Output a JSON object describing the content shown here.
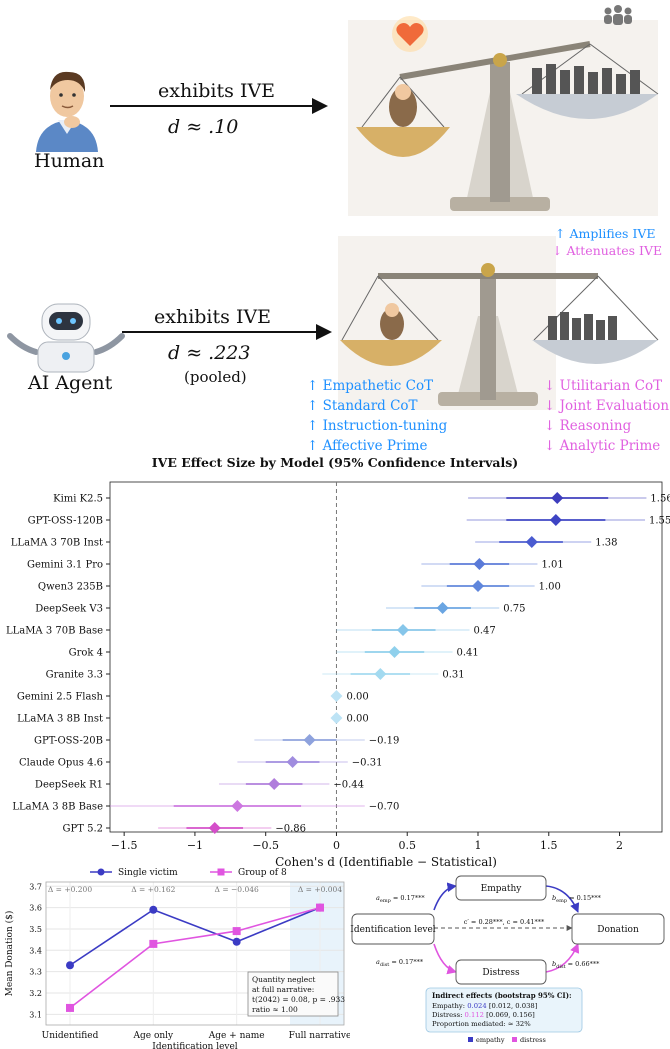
{
  "top": {
    "human_label": "Human",
    "human_arrow_text": "exhibits IVE",
    "human_effect": "d ≈ .10",
    "ai_label": "AI Agent",
    "ai_arrow_text": "exhibits IVE",
    "ai_effect": "d ≈ .223",
    "ai_pooled": "(pooled)",
    "legend_amplify": "↑ Amplifies IVE",
    "legend_attenuate": "↓ Attenuates IVE",
    "amplifiers": [
      "↑ Empathetic CoT",
      "↑ Standard CoT",
      "↑ Instruction-tuning",
      "↑ Affective Prime"
    ],
    "attenuators": [
      "↓ Utilitarian CoT",
      "↓ Joint Evaluation",
      "↓ Reasoning",
      "↓ Analytic Prime"
    ],
    "colors": {
      "amplify": "#1e90ff",
      "attenuate": "#e060e0"
    },
    "icons": [
      "human-avatar-icon",
      "robot-avatar-icon",
      "balance-scale-icon",
      "heart-icon",
      "crowd-icon"
    ]
  },
  "chart_data": [
    {
      "type": "forest",
      "title": "IVE Effect Size by Model (95% Confidence Intervals)",
      "xlabel": "Cohen's d (Identifiable − Statistical)",
      "xlim": [
        -1.6,
        2.3
      ],
      "xticks": [
        -1.5,
        -1,
        -0.5,
        0,
        0.5,
        1,
        1.5,
        2
      ],
      "xtick_labels": [
        "−1.5",
        "−1",
        "−0.5",
        "0",
        "0.5",
        "1",
        "1.5",
        "2"
      ],
      "reference_line": 0,
      "models": [
        {
          "name": "Kimi K2.5",
          "d": 1.56,
          "label": "1.56",
          "ci": [
            0.93,
            2.19
          ],
          "ci_inner": [
            1.2,
            1.92
          ],
          "color": "#3d3dbd"
        },
        {
          "name": "GPT-OSS-120B",
          "d": 1.55,
          "label": "1.55",
          "ci": [
            0.92,
            2.18
          ],
          "ci_inner": [
            1.2,
            1.9
          ],
          "color": "#3d44c4"
        },
        {
          "name": "LLaMA 3 70B Inst",
          "d": 1.38,
          "label": "1.38",
          "ci": [
            0.98,
            1.8
          ],
          "ci_inner": [
            1.15,
            1.6
          ],
          "color": "#4a5bd0"
        },
        {
          "name": "Gemini 3.1 Pro",
          "d": 1.01,
          "label": "1.01",
          "ci": [
            0.6,
            1.42
          ],
          "ci_inner": [
            0.8,
            1.22
          ],
          "color": "#5a7ad8"
        },
        {
          "name": "Qwen3 235B",
          "d": 1.0,
          "label": "1.00",
          "ci": [
            0.6,
            1.4
          ],
          "ci_inner": [
            0.78,
            1.22
          ],
          "color": "#5f86dc"
        },
        {
          "name": "DeepSeek V3",
          "d": 0.75,
          "label": "0.75",
          "ci": [
            0.35,
            1.15
          ],
          "ci_inner": [
            0.55,
            0.95
          ],
          "color": "#6aa5e2"
        },
        {
          "name": "LLaMA 3 70B Base",
          "d": 0.47,
          "label": "0.47",
          "ci": [
            0.0,
            0.94
          ],
          "ci_inner": [
            0.25,
            0.7
          ],
          "color": "#86c6ea"
        },
        {
          "name": "Grok 4",
          "d": 0.41,
          "label": "0.41",
          "ci": [
            0.0,
            0.82
          ],
          "ci_inner": [
            0.2,
            0.62
          ],
          "color": "#8fd0ec"
        },
        {
          "name": "Granite 3.3",
          "d": 0.31,
          "label": "0.31",
          "ci": [
            -0.1,
            0.72
          ],
          "ci_inner": [
            0.1,
            0.52
          ],
          "color": "#a3daf0"
        },
        {
          "name": "Gemini 2.5 Flash",
          "d": 0.0,
          "label": "0.00",
          "ci": [
            -0.02,
            0.02
          ],
          "ci_inner": [
            -0.01,
            0.01
          ],
          "color": "#bde3f5"
        },
        {
          "name": "LLaMA 3 8B Inst",
          "d": 0.0,
          "label": "0.00",
          "ci": [
            -0.02,
            0.02
          ],
          "ci_inner": [
            -0.01,
            0.01
          ],
          "color": "#bde3f5"
        },
        {
          "name": "GPT-OSS-20B",
          "d": -0.19,
          "label": "−0.19",
          "ci": [
            -0.58,
            0.2
          ],
          "ci_inner": [
            -0.38,
            0.0
          ],
          "color": "#8ea2dd"
        },
        {
          "name": "Claude Opus 4.6",
          "d": -0.31,
          "label": "−0.31",
          "ci": [
            -0.7,
            0.08
          ],
          "ci_inner": [
            -0.5,
            -0.12
          ],
          "color": "#a08cdf"
        },
        {
          "name": "DeepSeek R1",
          "d": -0.44,
          "label": "−0.44",
          "ci": [
            -0.83,
            -0.05
          ],
          "ci_inner": [
            -0.64,
            -0.24
          ],
          "color": "#b07ddc"
        },
        {
          "name": "LLaMA 3 8B Base",
          "d": -0.7,
          "label": "−0.70",
          "ci": [
            -1.6,
            0.2
          ],
          "ci_inner": [
            -1.15,
            -0.25
          ],
          "color": "#cc77e0"
        },
        {
          "name": "GPT 5.2",
          "d": -0.86,
          "label": "−0.86",
          "ci": [
            -1.26,
            -0.46
          ],
          "ci_inner": [
            -1.06,
            -0.66
          ],
          "color": "#d44ec9"
        }
      ]
    },
    {
      "type": "line",
      "categories": [
        "Unidentified",
        "Age only",
        "Age + name",
        "Full narrative"
      ],
      "xlabel": "Identification level",
      "ylabel": "Mean Donation ($)",
      "ylim": [
        3.05,
        3.72
      ],
      "yticks": [
        3.1,
        3.2,
        3.3,
        3.4,
        3.5,
        3.6,
        3.7
      ],
      "series": [
        {
          "name": "Single victim",
          "values": [
            3.33,
            3.59,
            3.44,
            3.6
          ],
          "color": "#3b3bc4",
          "marker": "circle"
        },
        {
          "name": "Group of 8",
          "values": [
            3.13,
            3.43,
            3.49,
            3.6
          ],
          "color": "#e055e0",
          "marker": "square"
        }
      ],
      "deltas": [
        "Δ = +0.200",
        "Δ = +0.162",
        "Δ = −0.046",
        "Δ = +0.004"
      ],
      "note": [
        "Quantity neglect",
        "at full narrative:",
        "t(2042) = 0.08, p = .933",
        "ratio ≈ 1.00"
      ],
      "grid": true,
      "legend": "top"
    }
  ],
  "mediation": {
    "nodes": {
      "empathy": "Empathy",
      "distress": "Distress",
      "x": "Identification level",
      "y": "Donation"
    },
    "paths": {
      "a_emp": "a",
      "a_emp_sub": "emp",
      "a_emp_val": " = 0.17***",
      "b_emp": "b",
      "b_emp_sub": "emp",
      "b_emp_val": " = 0.15***",
      "a_dist": "a",
      "a_dist_sub": "dist",
      "a_dist_val": " = 0.17***",
      "b_dist": "b",
      "b_dist_sub": "dist",
      "b_dist_val": " = 0.66***",
      "direct": "c′ = 0.28***, c = 0.41***"
    },
    "box_title": "Indirect effects (bootstrap 95% CI):",
    "box_lines": [
      {
        "label": "Empathy: ",
        "value": "0.024",
        "rest": " [0.012, 0.038]"
      },
      {
        "label": "Distress: ",
        "value": "0.112",
        "rest": " [0.069, 0.156]"
      },
      {
        "label": "Proportion mediated: ≈ 32%",
        "value": "",
        "rest": ""
      }
    ],
    "legend": [
      {
        "name": "empathy",
        "color": "#3b3bc4"
      },
      {
        "name": "distress",
        "color": "#e055e0"
      }
    ]
  }
}
